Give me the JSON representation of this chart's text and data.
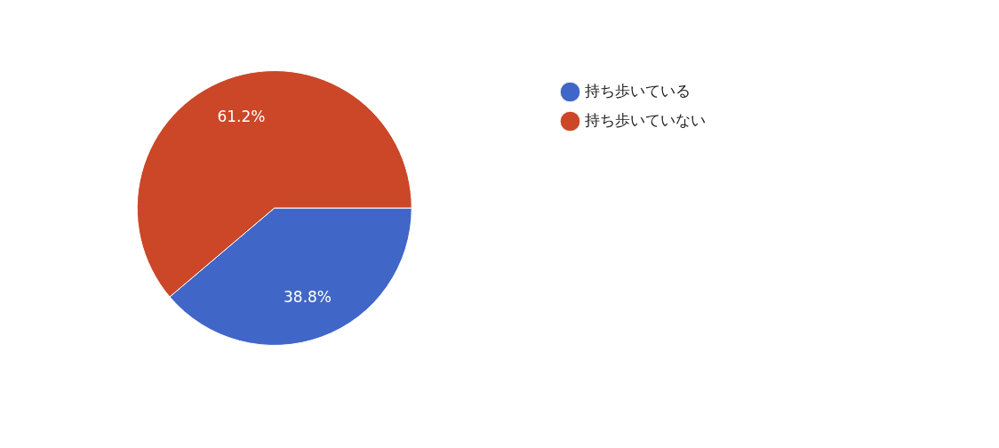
{
  "chart_data": {
    "type": "pie",
    "categories": [
      "持ち歩いている",
      "持ち歩いていない"
    ],
    "values": [
      38.8,
      61.2
    ],
    "colors": [
      "#4066c7",
      "#cb4727"
    ],
    "value_labels": [
      "38.8%",
      "61.2%"
    ],
    "legend": "top right"
  }
}
